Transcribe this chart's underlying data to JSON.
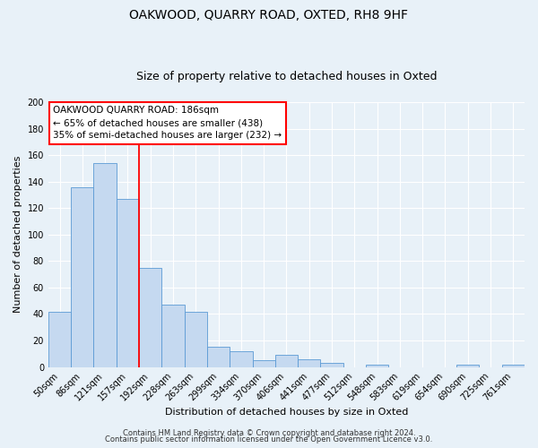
{
  "title": "OAKWOOD, QUARRY ROAD, OXTED, RH8 9HF",
  "subtitle": "Size of property relative to detached houses in Oxted",
  "xlabel": "Distribution of detached houses by size in Oxted",
  "ylabel": "Number of detached properties",
  "bar_labels": [
    "50sqm",
    "86sqm",
    "121sqm",
    "157sqm",
    "192sqm",
    "228sqm",
    "263sqm",
    "299sqm",
    "334sqm",
    "370sqm",
    "406sqm",
    "441sqm",
    "477sqm",
    "512sqm",
    "548sqm",
    "583sqm",
    "619sqm",
    "654sqm",
    "690sqm",
    "725sqm",
    "761sqm"
  ],
  "bar_values": [
    42,
    136,
    154,
    127,
    75,
    47,
    42,
    15,
    12,
    5,
    9,
    6,
    3,
    0,
    2,
    0,
    0,
    0,
    2,
    0,
    2
  ],
  "bar_color": "#c5d9f0",
  "bar_edge_color": "#5b9bd5",
  "vline_color": "red",
  "vline_pos": 3.5,
  "annotation_text_line1": "OAKWOOD QUARRY ROAD: 186sqm",
  "annotation_text_line2": "← 65% of detached houses are smaller (438)",
  "annotation_text_line3": "35% of semi-detached houses are larger (232) →",
  "ylim": [
    0,
    200
  ],
  "yticks": [
    0,
    20,
    40,
    60,
    80,
    100,
    120,
    140,
    160,
    180,
    200
  ],
  "footer_line1": "Contains HM Land Registry data © Crown copyright and database right 2024.",
  "footer_line2": "Contains public sector information licensed under the Open Government Licence v3.0.",
  "background_color": "#e8f1f8",
  "plot_bg_color": "#e8f1f8",
  "grid_color": "#ffffff",
  "title_fontsize": 10,
  "subtitle_fontsize": 9,
  "axis_label_fontsize": 8,
  "tick_fontsize": 7,
  "footer_fontsize": 6
}
